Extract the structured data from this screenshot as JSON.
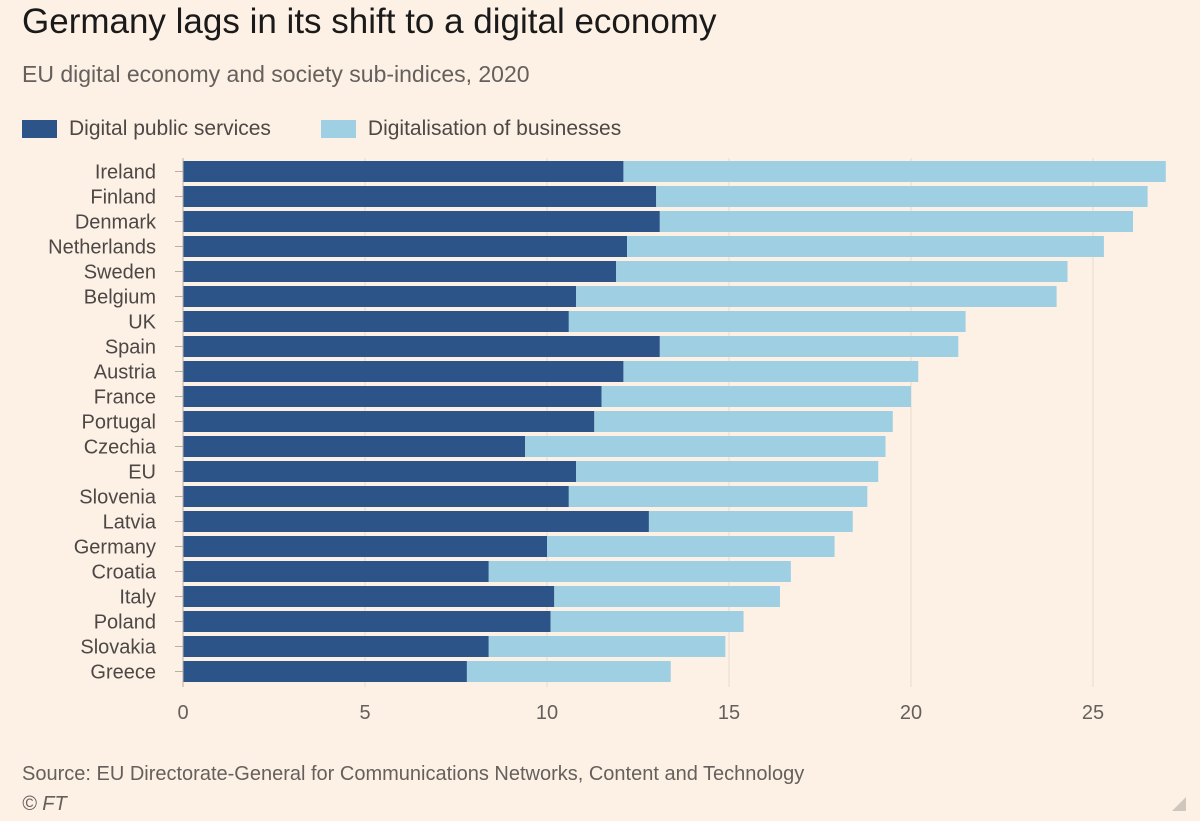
{
  "title": "Germany lags in its shift to a digital economy",
  "subtitle": "EU digital economy and society sub-indices, 2020",
  "source": "Source: EU Directorate-General for Communications Networks, Content and Technology",
  "copyright": "© FT",
  "colors": {
    "background": "#fdf1e6",
    "digital_public_services": "#2c5489",
    "digitalisation_of_businesses": "#9fcfe3",
    "grid": "#e6d9ce",
    "axis_text": "#66605c"
  },
  "icons": {
    "corner": "resize-corner-icon"
  },
  "chart_data": {
    "type": "bar",
    "orientation": "horizontal",
    "stacked": true,
    "title": "Germany lags in its shift to a digital economy",
    "subtitle": "EU digital economy and society sub-indices, 2020",
    "xlabel": "",
    "ylabel": "",
    "xlim": [
      0,
      27
    ],
    "xticks": [
      0,
      5,
      10,
      15,
      20,
      25
    ],
    "grid": true,
    "legend_position": "top-left",
    "categories": [
      "Ireland",
      "Finland",
      "Denmark",
      "Netherlands",
      "Sweden",
      "Belgium",
      "UK",
      "Spain",
      "Austria",
      "France",
      "Portugal",
      "Czechia",
      "EU",
      "Slovenia",
      "Latvia",
      "Germany",
      "Croatia",
      "Italy",
      "Poland",
      "Slovakia",
      "Greece"
    ],
    "series": [
      {
        "name": "Digital public services",
        "values": [
          12.1,
          13.0,
          13.1,
          12.2,
          11.9,
          10.8,
          10.6,
          13.1,
          12.1,
          11.5,
          11.3,
          9.4,
          10.8,
          10.6,
          12.8,
          10.0,
          8.4,
          10.2,
          10.1,
          8.4,
          7.8
        ]
      },
      {
        "name": "Digitalisation of businesses",
        "values": [
          14.9,
          13.5,
          13.0,
          13.1,
          12.4,
          13.2,
          10.9,
          8.2,
          8.1,
          8.5,
          8.2,
          9.9,
          8.3,
          8.2,
          5.6,
          7.9,
          8.3,
          6.2,
          5.3,
          6.5,
          5.6
        ]
      }
    ]
  }
}
